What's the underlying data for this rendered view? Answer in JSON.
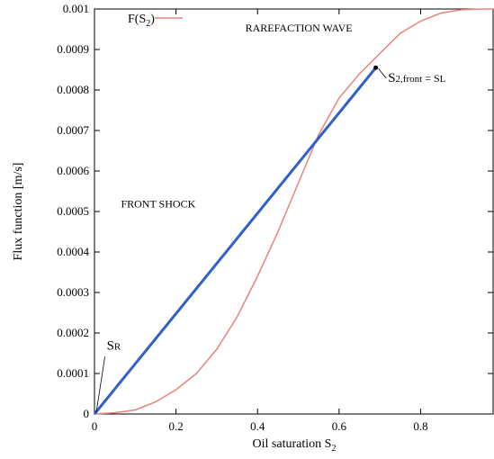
{
  "chart_data": {
    "type": "line",
    "xlabel": "Oil saturation S",
    "xlabel_sub": "2",
    "ylabel": "Flux function [m/s]",
    "xlim": [
      0,
      0.98
    ],
    "ylim": [
      0,
      0.001
    ],
    "x_ticks": [
      0,
      0.2,
      0.4,
      0.6,
      0.8
    ],
    "x_tick_labels": [
      "0",
      "0.2",
      "0.4",
      "0.6",
      "0.8"
    ],
    "y_ticks": [
      0,
      0.0001,
      0.0002,
      0.0003,
      0.0004,
      0.0005,
      0.0006,
      0.0007,
      0.0008,
      0.0009,
      0.001
    ],
    "y_tick_labels": [
      "0",
      "0.0001",
      "0.0002",
      "0.0003",
      "0.0004",
      "0.0005",
      "0.0006",
      "0.0007",
      "0.0008",
      "0.0009",
      "0.001"
    ],
    "grid": false,
    "legend": {
      "position": "top-left",
      "label": "F(S",
      "label_sub": "2",
      "label_end": ")"
    },
    "series": [
      {
        "name": "F(S2)",
        "color": "#e8827a",
        "x": [
          0,
          0.05,
          0.1,
          0.15,
          0.2,
          0.25,
          0.3,
          0.35,
          0.4,
          0.45,
          0.5,
          0.55,
          0.6,
          0.65,
          0.7,
          0.75,
          0.8,
          0.85,
          0.9,
          0.95,
          0.98
        ],
        "y": [
          0,
          3e-06,
          1e-05,
          3e-05,
          6e-05,
          0.0001,
          0.00016,
          0.00024,
          0.00034,
          0.00045,
          0.00057,
          0.00069,
          0.00078,
          0.00084,
          0.00089,
          0.00094,
          0.00097,
          0.00099,
          0.000998,
          0.001,
          0.001
        ]
      },
      {
        "name": "front shock",
        "color": "#2f5fc8",
        "x": [
          0,
          0.69
        ],
        "y": [
          0,
          0.000855
        ]
      }
    ],
    "annotations": {
      "rarefaction": {
        "text": "RAREFACTION WAVE",
        "color": "#e0554a",
        "x": 0.37,
        "y": 0.000945
      },
      "front_shock": {
        "text": "FRONT SHOCK",
        "color": "#2f5fc8",
        "x": 0.065,
        "y": 0.00051
      },
      "s_r": {
        "main": "S",
        "sub": "R",
        "x": 0.03,
        "y": 0.000155
      },
      "s_front": {
        "main": "S",
        "sub": "2,front",
        "eq": " = S",
        "eq_sub": "L",
        "x": 0.72,
        "y": 0.00082
      },
      "marker": {
        "x": 0.69,
        "y": 0.000855
      }
    }
  }
}
